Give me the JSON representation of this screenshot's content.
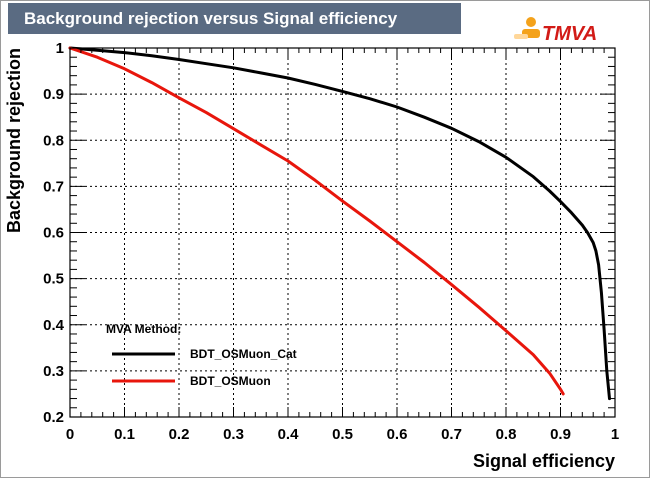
{
  "chart_data": {
    "type": "line",
    "title": "Background rejection versus Signal efficiency",
    "xlabel": "Signal efficiency",
    "ylabel": "Background rejection",
    "xlim": [
      0,
      1
    ],
    "ylim": [
      0.2,
      1
    ],
    "xticks": [
      "0",
      "0.1",
      "0.2",
      "0.3",
      "0.4",
      "0.5",
      "0.6",
      "0.7",
      "0.8",
      "0.9",
      "1"
    ],
    "yticks": [
      "0.2",
      "0.3",
      "0.4",
      "0.5",
      "0.6",
      "0.7",
      "0.8",
      "0.9",
      "1"
    ],
    "grid": true,
    "legend_title": "MVA Method:",
    "legend_position": "bottom-left",
    "series": [
      {
        "name": "BDT_OSMuon_Cat",
        "color": "#000000",
        "x": [
          0,
          0.05,
          0.1,
          0.15,
          0.2,
          0.25,
          0.3,
          0.35,
          0.4,
          0.45,
          0.5,
          0.55,
          0.6,
          0.65,
          0.7,
          0.75,
          0.8,
          0.85,
          0.88,
          0.9,
          0.92,
          0.94,
          0.95,
          0.96,
          0.965,
          0.97,
          0.975,
          0.98,
          0.985,
          0.99
        ],
        "y": [
          1.0,
          0.995,
          0.99,
          0.983,
          0.975,
          0.966,
          0.957,
          0.946,
          0.935,
          0.921,
          0.906,
          0.89,
          0.872,
          0.85,
          0.826,
          0.797,
          0.763,
          0.721,
          0.69,
          0.667,
          0.643,
          0.616,
          0.599,
          0.578,
          0.56,
          0.53,
          0.47,
          0.39,
          0.3,
          0.24
        ]
      },
      {
        "name": "BDT_OSMuon",
        "color": "#e8160c",
        "x": [
          0,
          0.05,
          0.1,
          0.15,
          0.2,
          0.25,
          0.3,
          0.35,
          0.4,
          0.45,
          0.5,
          0.55,
          0.6,
          0.65,
          0.7,
          0.75,
          0.8,
          0.85,
          0.88,
          0.9,
          0.905
        ],
        "y": [
          1.0,
          0.98,
          0.955,
          0.925,
          0.892,
          0.86,
          0.825,
          0.79,
          0.755,
          0.713,
          0.668,
          0.625,
          0.58,
          0.535,
          0.487,
          0.438,
          0.387,
          0.335,
          0.295,
          0.26,
          0.25
        ]
      }
    ]
  },
  "logo": {
    "text": "TMVA"
  }
}
